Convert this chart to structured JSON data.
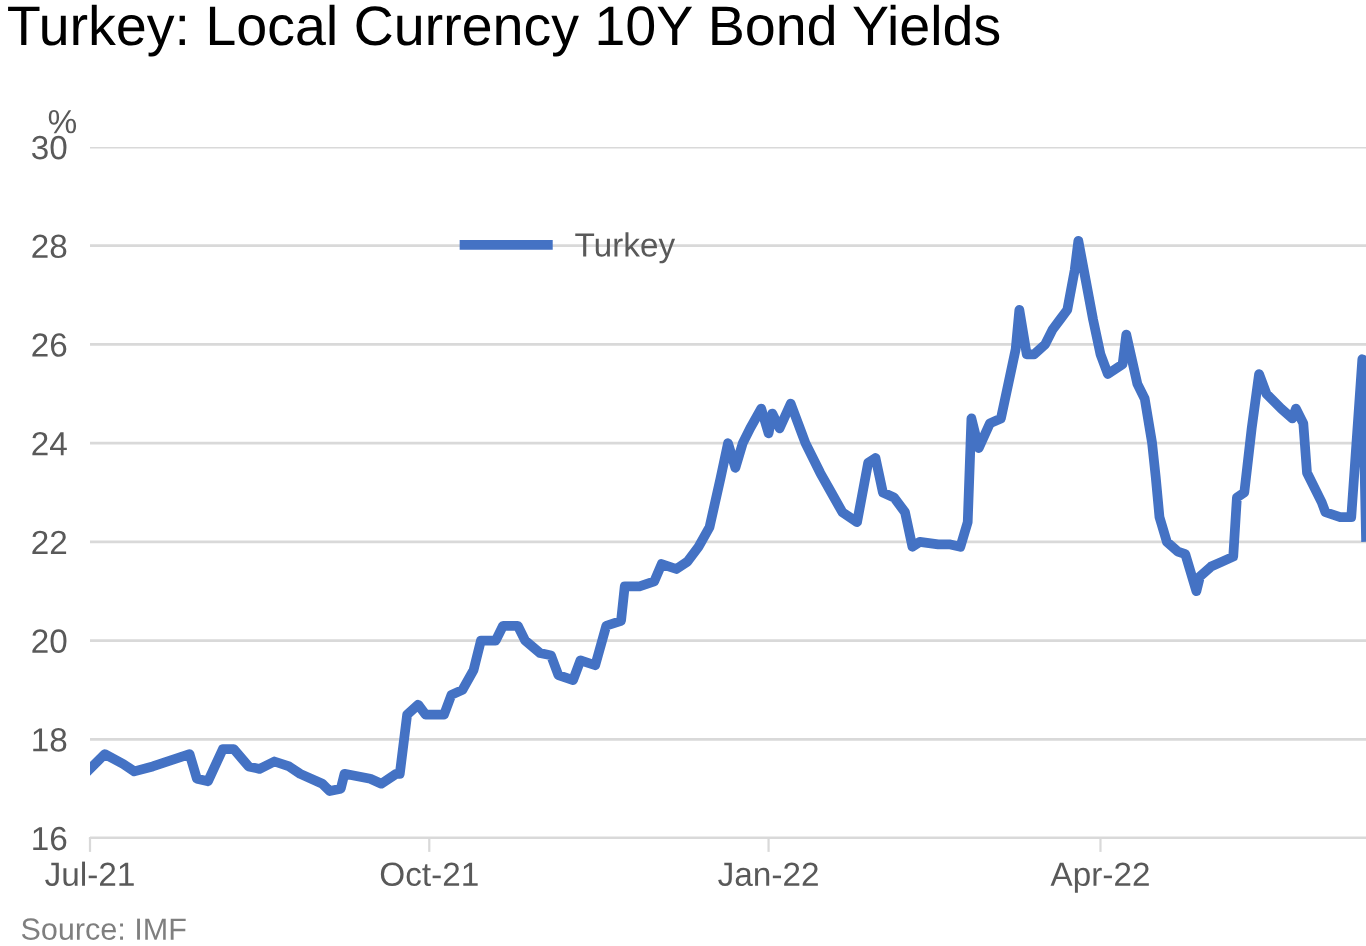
{
  "chart_data": {
    "type": "line",
    "title": "Turkey: Local Currency 10Y Bond Yields",
    "ylabel": "%",
    "annotations": [
      "Source: IMF"
    ],
    "x": [
      "2021-07-01",
      "2021-07-05",
      "2021-07-10",
      "2021-07-13",
      "2021-07-18",
      "2021-07-28",
      "2021-07-30",
      "2021-08-02",
      "2021-08-06",
      "2021-08-09",
      "2021-08-13",
      "2021-08-16",
      "2021-08-20",
      "2021-08-24",
      "2021-08-27",
      "2021-09-02",
      "2021-09-04",
      "2021-09-07",
      "2021-09-08",
      "2021-09-15",
      "2021-09-18",
      "2021-09-22",
      "2021-09-23",
      "2021-09-25",
      "2021-09-28",
      "2021-09-30",
      "2021-10-05",
      "2021-10-07",
      "2021-10-10",
      "2021-10-13",
      "2021-10-15",
      "2021-10-19",
      "2021-10-21",
      "2021-10-25",
      "2021-10-27",
      "2021-10-31",
      "2021-11-03",
      "2021-11-05",
      "2021-11-09",
      "2021-11-11",
      "2021-11-15",
      "2021-11-18",
      "2021-11-22",
      "2021-11-23",
      "2021-11-27",
      "2021-12-01",
      "2021-12-03",
      "2021-12-07",
      "2021-12-10",
      "2021-12-13",
      "2021-12-16",
      "2021-12-19",
      "2021-12-21",
      "2021-12-23",
      "2021-12-25",
      "2021-12-27",
      "2021-12-30",
      "2022-01-01",
      "2022-01-02",
      "2022-01-04",
      "2022-01-07",
      "2022-01-10",
      "2022-01-11",
      "2022-01-15",
      "2022-01-18",
      "2022-01-21",
      "2022-01-25",
      "2022-01-28",
      "2022-01-30",
      "2022-02-01",
      "2022-02-04",
      "2022-02-07",
      "2022-02-09",
      "2022-02-11",
      "2022-02-16",
      "2022-02-19",
      "2022-02-22",
      "2022-02-24",
      "2022-02-25",
      "2022-02-27",
      "2022-03-02",
      "2022-03-05",
      "2022-03-07",
      "2022-03-09",
      "2022-03-10",
      "2022-03-12",
      "2022-03-14",
      "2022-03-17",
      "2022-03-19",
      "2022-03-21",
      "2022-03-23",
      "2022-03-25",
      "2022-03-26",
      "2022-03-28",
      "2022-03-30",
      "2022-04-01",
      "2022-04-03",
      "2022-04-07",
      "2022-04-08",
      "2022-04-11",
      "2022-04-13",
      "2022-04-15",
      "2022-04-16",
      "2022-04-17",
      "2022-04-19",
      "2022-04-22",
      "2022-04-24",
      "2022-04-27",
      "2022-04-28",
      "2022-05-01",
      "2022-05-04",
      "2022-05-07",
      "2022-05-08",
      "2022-05-10",
      "2022-05-12",
      "2022-05-14",
      "2022-05-16",
      "2022-05-20",
      "2022-05-23",
      "2022-05-24",
      "2022-05-26",
      "2022-05-27",
      "2022-05-31",
      "2022-06-01",
      "2022-06-05",
      "2022-06-08",
      "2022-06-11",
      "2022-06-12"
    ],
    "series": [
      {
        "name": "Turkey",
        "color": "#4472c4",
        "values": [
          17.4,
          17.7,
          17.5,
          17.35,
          17.45,
          17.7,
          17.2,
          17.15,
          17.8,
          17.8,
          17.45,
          17.4,
          17.55,
          17.45,
          17.3,
          17.1,
          16.95,
          17.0,
          17.3,
          17.2,
          17.1,
          17.3,
          17.3,
          18.5,
          18.7,
          18.5,
          18.5,
          18.9,
          19.0,
          19.4,
          20.0,
          20.0,
          20.3,
          20.3,
          20.0,
          19.75,
          19.7,
          19.3,
          19.2,
          19.6,
          19.5,
          20.3,
          20.4,
          21.1,
          21.1,
          21.2,
          21.55,
          21.45,
          21.6,
          21.9,
          22.3,
          23.3,
          24.0,
          23.5,
          24.0,
          24.3,
          24.7,
          24.2,
          24.6,
          24.3,
          24.8,
          24.2,
          24.0,
          23.4,
          23.0,
          22.6,
          22.4,
          23.6,
          23.7,
          23.0,
          22.9,
          22.6,
          21.9,
          22.0,
          21.95,
          21.95,
          21.9,
          22.4,
          24.5,
          23.9,
          24.4,
          24.5,
          25.2,
          25.9,
          26.7,
          25.8,
          25.8,
          26.0,
          26.3,
          26.5,
          26.7,
          27.5,
          28.1,
          27.3,
          26.5,
          25.8,
          25.4,
          25.6,
          26.2,
          25.2,
          24.9,
          24.0,
          23.3,
          22.5,
          22.0,
          21.8,
          21.75,
          21.0,
          21.3,
          21.5,
          21.6,
          21.7,
          22.9,
          23.0,
          24.3,
          25.4,
          25.0,
          24.7,
          24.5,
          24.7,
          24.4,
          23.4,
          22.8,
          22.6,
          22.5,
          22.5,
          25.7,
          22.1
        ]
      }
    ],
    "xlim": [
      "2021-07-01",
      "2022-06-12"
    ],
    "xticks": [
      {
        "value": "2021-07-01",
        "label": "Jul-21"
      },
      {
        "value": "2021-10-01",
        "label": "Oct-21"
      },
      {
        "value": "2022-01-01",
        "label": "Jan-22"
      },
      {
        "value": "2022-04-01",
        "label": "Apr-22"
      }
    ],
    "ylim": [
      16,
      30
    ],
    "yticks": [
      16,
      18,
      20,
      22,
      24,
      26,
      28,
      30
    ],
    "grid": "y",
    "legend": "top left",
    "line_style": "solid"
  }
}
